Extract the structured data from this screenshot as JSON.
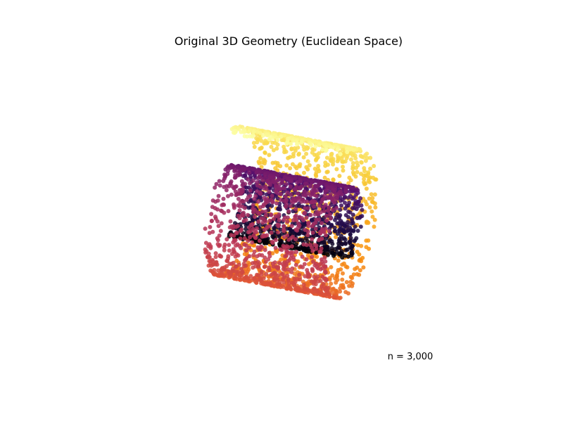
{
  "chart_data": {
    "type": "scatter",
    "title": "Original 3D Geometry (Euclidean Space)",
    "annotation": "n = 3,000",
    "n_points": 3000,
    "manifold": "swiss-roll",
    "projection": "3d",
    "axes_visible": false,
    "grid": false,
    "legend": "none",
    "colormap": "inferno",
    "color_encodes": "position along the roll (unrolled angle)",
    "colormap_stops": [
      "#000004",
      "#1f0c48",
      "#550f6d",
      "#88226a",
      "#ba3655",
      "#e35933",
      "#f98e09",
      "#f8d13c",
      "#fcffa4"
    ]
  }
}
